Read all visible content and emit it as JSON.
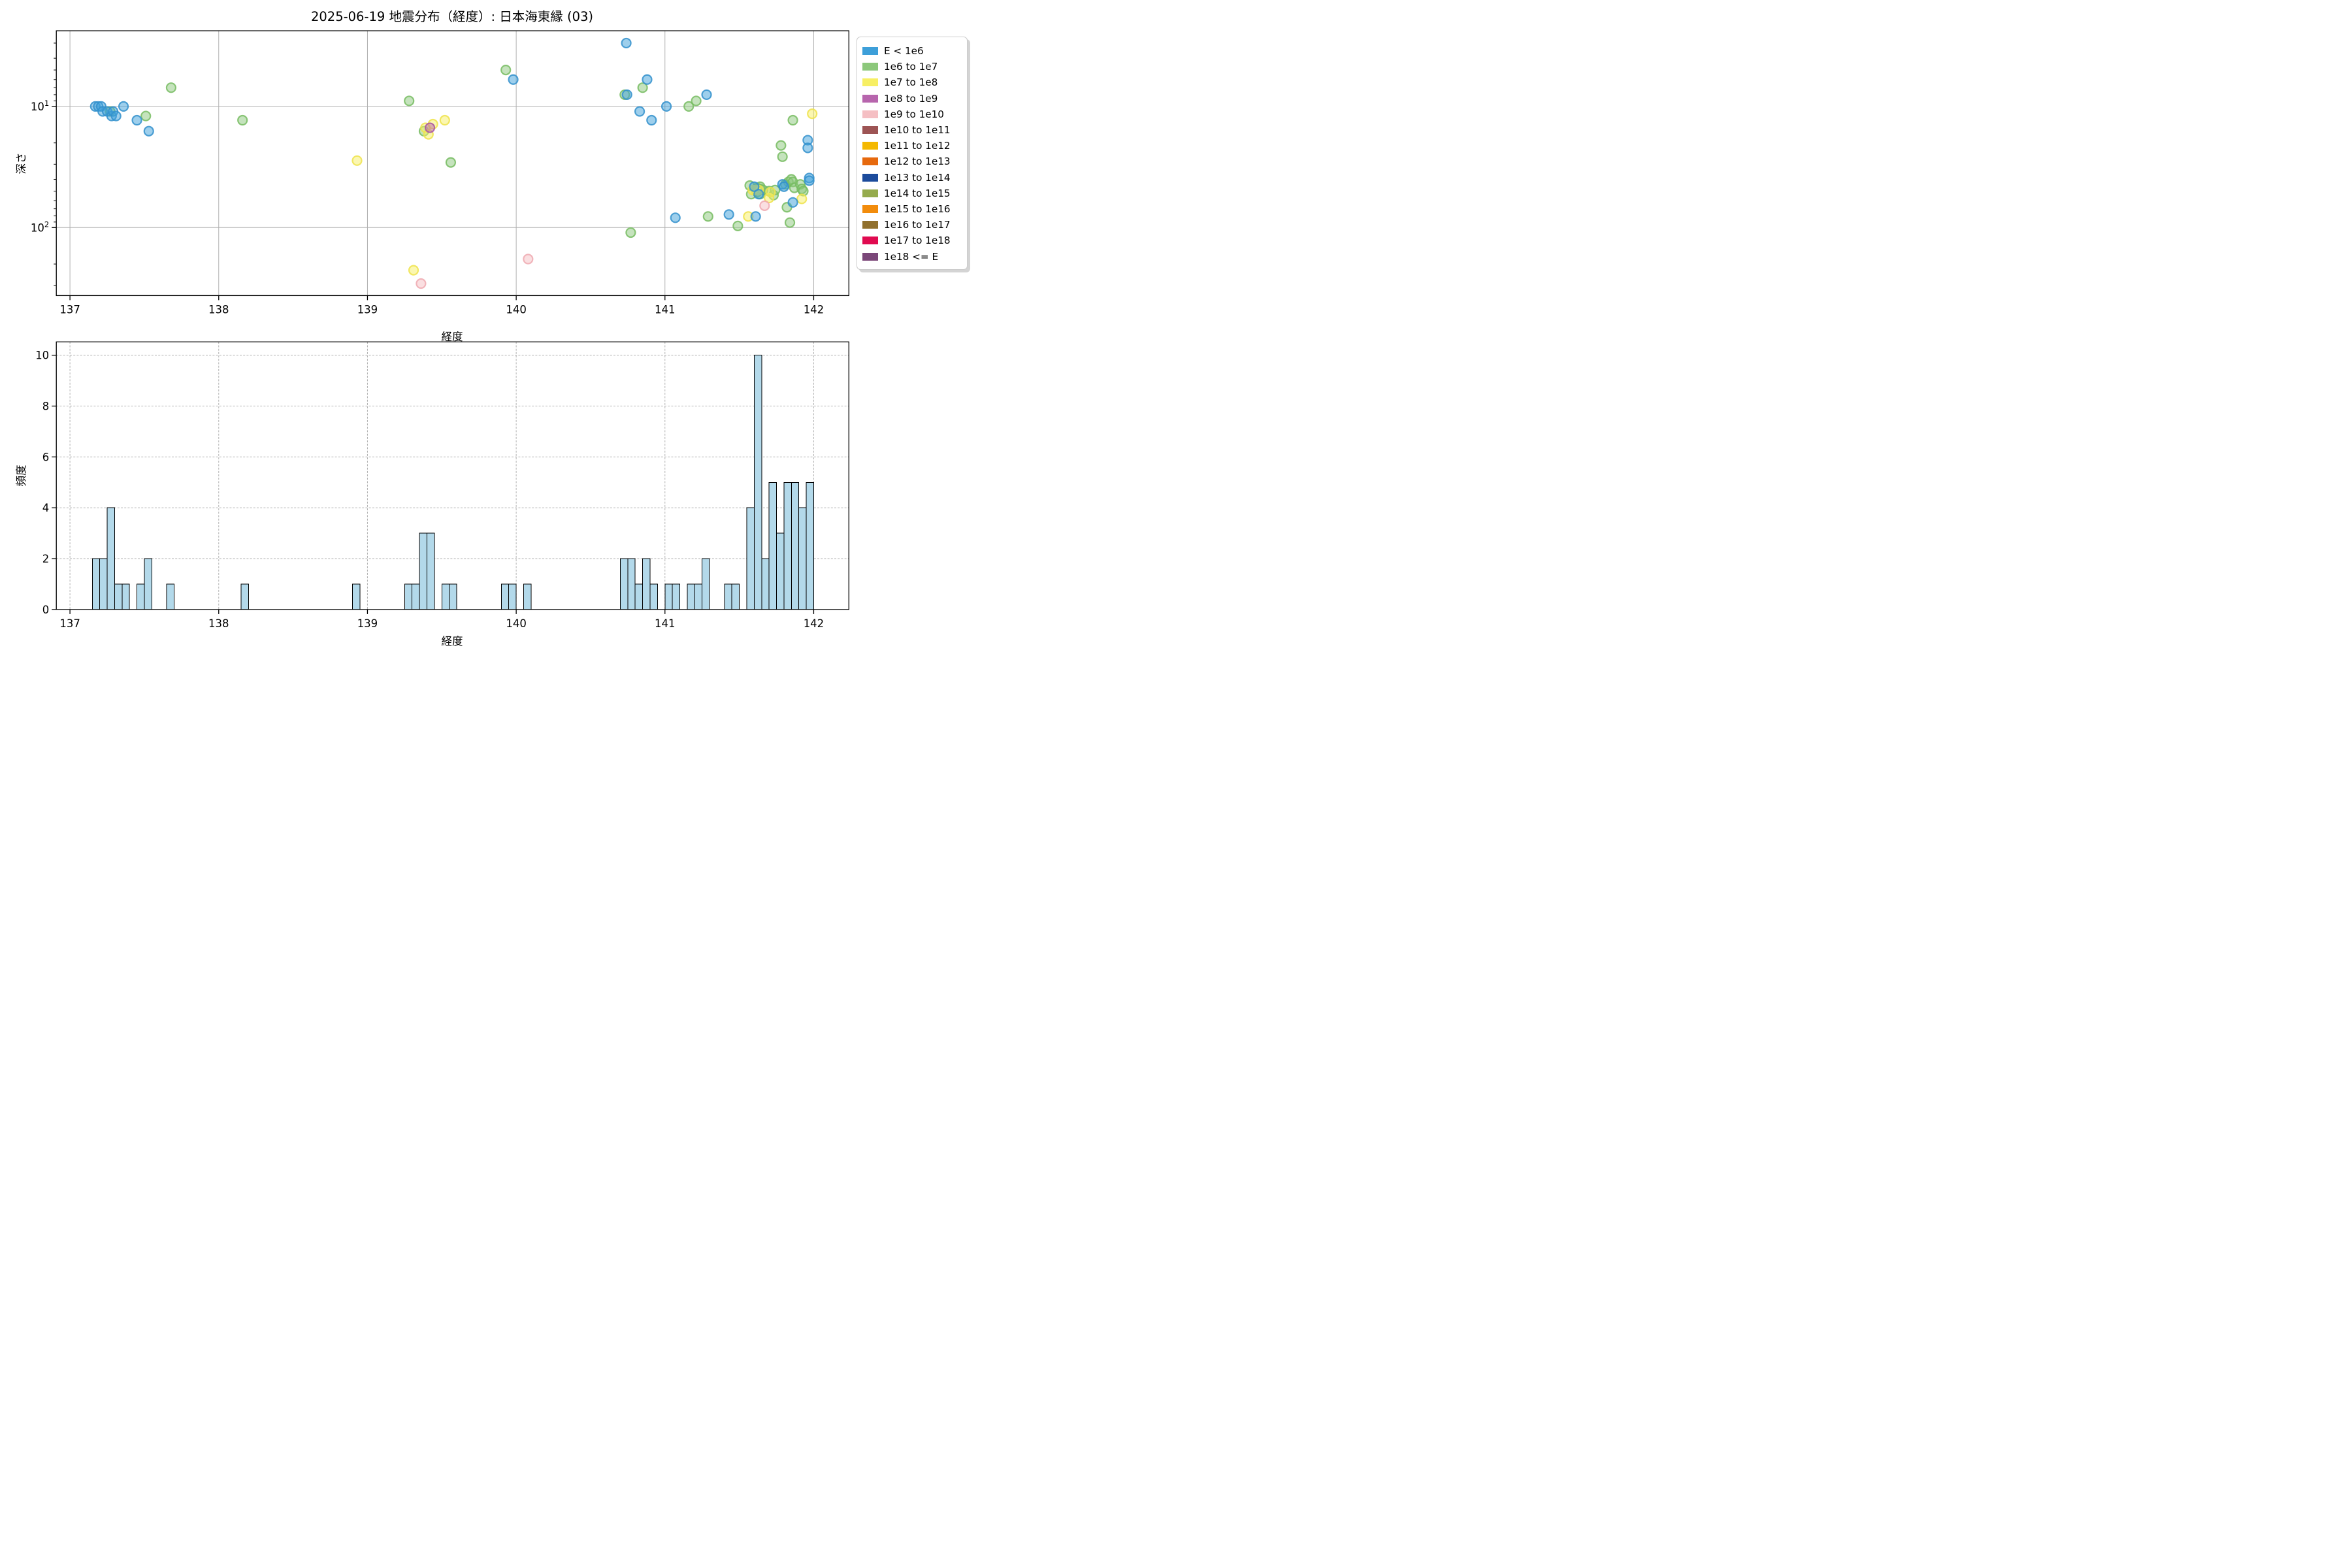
{
  "figure": {
    "title": "2025-06-19 地震分布（経度）: 日本海東縁 (03)",
    "background": "#ffffff",
    "grid_color": "#b0b0b0",
    "spine_color": "#000000"
  },
  "scatter_panel": {
    "xlabel": "経度",
    "ylabel": "深さ",
    "x_ticks": [
      137,
      138,
      139,
      140,
      141,
      142
    ],
    "y_major_ticks": [
      {
        "base": "10",
        "exp": "1",
        "depth": 10
      },
      {
        "base": "10",
        "exp": "2",
        "depth": 100
      }
    ],
    "y_minor_depths": [
      3,
      4,
      5,
      6,
      7,
      8,
      9,
      20,
      30,
      40,
      50,
      60,
      70,
      80,
      90,
      200,
      300
    ],
    "grid_style": "solid"
  },
  "hist_panel": {
    "xlabel": "経度",
    "ylabel": "頻度",
    "x_ticks": [
      137,
      138,
      139,
      140,
      141,
      142
    ],
    "y_ticks": [
      0,
      2,
      4,
      6,
      8,
      10
    ],
    "grid_style": "dashed"
  },
  "legend": {
    "items": [
      {
        "label": "E < 1e6",
        "color": "#3D9FD9"
      },
      {
        "label": "1e6 to 1e7",
        "color": "#8CC87B"
      },
      {
        "label": "1e7 to 1e8",
        "color": "#F7EF64"
      },
      {
        "label": "1e8 to 1e9",
        "color": "#B765AD"
      },
      {
        "label": "1e9 to 1e10",
        "color": "#F5BFC3"
      },
      {
        "label": "1e10 to 1e11",
        "color": "#9D5454"
      },
      {
        "label": "1e11 to 1e12",
        "color": "#F4B800"
      },
      {
        "label": "1e12 to 1e13",
        "color": "#E6690D"
      },
      {
        "label": "1e13 to 1e14",
        "color": "#1C4B9C"
      },
      {
        "label": "1e14 to 1e15",
        "color": "#95AB4D"
      },
      {
        "label": "1e15 to 1e16",
        "color": "#F28C0C"
      },
      {
        "label": "1e16 to 1e17",
        "color": "#91702D"
      },
      {
        "label": "1e17 to 1e18",
        "color": "#E00A50"
      },
      {
        "label": "1e18 <= E",
        "color": "#7B4779"
      }
    ]
  },
  "chart_data": [
    {
      "type": "scatter",
      "title": "2025-06-19 地震分布（経度）: 日本海東縁 (03)",
      "xlabel": "経度",
      "ylabel": "深さ",
      "xlim": [
        136.91,
        142.24
      ],
      "ylim_depth": [
        2.4,
        365
      ],
      "y_scale": "log-inverted",
      "series": [
        {
          "name": "E < 1e6",
          "color": "#3D9FD9",
          "edge": "#3391CC",
          "points": [
            [
              137.17,
              10
            ],
            [
              137.19,
              10
            ],
            [
              137.21,
              10
            ],
            [
              137.22,
              11
            ],
            [
              137.25,
              11
            ],
            [
              137.28,
              12
            ],
            [
              137.29,
              11
            ],
            [
              137.31,
              12
            ],
            [
              137.36,
              10
            ],
            [
              137.45,
              13
            ],
            [
              137.53,
              16
            ],
            [
              139.98,
              6
            ],
            [
              140.74,
              3
            ],
            [
              140.745,
              8
            ],
            [
              140.83,
              11
            ],
            [
              140.88,
              6
            ],
            [
              140.91,
              13
            ],
            [
              141.01,
              10
            ],
            [
              141.07,
              83
            ],
            [
              141.28,
              8
            ],
            [
              141.43,
              78
            ],
            [
              141.6,
              46
            ],
            [
              141.61,
              81
            ],
            [
              141.63,
              53
            ],
            [
              141.79,
              44
            ],
            [
              141.8,
              46
            ],
            [
              141.86,
              62
            ],
            [
              141.96,
              19
            ],
            [
              141.96,
              22
            ],
            [
              141.97,
              39
            ],
            [
              141.97,
              41
            ]
          ]
        },
        {
          "name": "1e6 to 1e7",
          "color": "#8CC87B",
          "edge": "#77BC62",
          "points": [
            [
              137.27,
              11
            ],
            [
              137.51,
              12
            ],
            [
              137.68,
              7
            ],
            [
              138.16,
              13
            ],
            [
              139.28,
              9
            ],
            [
              139.38,
              16
            ],
            [
              139.56,
              29
            ],
            [
              139.93,
              5
            ],
            [
              140.73,
              8
            ],
            [
              140.77,
              110
            ],
            [
              140.85,
              7
            ],
            [
              141.16,
              10
            ],
            [
              141.21,
              9
            ],
            [
              141.29,
              81
            ],
            [
              141.49,
              97
            ],
            [
              141.57,
              45
            ],
            [
              141.58,
              53
            ],
            [
              141.62,
              47
            ],
            [
              141.62,
              51
            ],
            [
              141.64,
              46
            ],
            [
              141.64,
              53
            ],
            [
              141.64,
              48
            ],
            [
              141.66,
              49
            ],
            [
              141.7,
              50
            ],
            [
              141.73,
              54
            ],
            [
              141.74,
              49
            ],
            [
              141.78,
              21
            ],
            [
              141.79,
              26
            ],
            [
              141.81,
              44
            ],
            [
              141.82,
              68
            ],
            [
              141.83,
              42
            ],
            [
              141.84,
              91
            ],
            [
              141.85,
              40
            ],
            [
              141.86,
              42
            ],
            [
              141.86,
              13
            ],
            [
              141.87,
              47
            ],
            [
              141.91,
              44
            ],
            [
              141.92,
              48
            ],
            [
              141.93,
              50
            ]
          ]
        },
        {
          "name": "1e7 to 1e8",
          "color": "#F7EF64",
          "edge": "#EFE34C",
          "points": [
            [
              138.93,
              28
            ],
            [
              139.31,
              225
            ],
            [
              139.39,
              15
            ],
            [
              139.41,
              17
            ],
            [
              139.44,
              14
            ],
            [
              139.52,
              13
            ],
            [
              141.56,
              81
            ],
            [
              141.59,
              49
            ],
            [
              141.61,
              49
            ],
            [
              141.63,
              49
            ],
            [
              141.7,
              57
            ],
            [
              141.71,
              51
            ],
            [
              141.92,
              58
            ],
            [
              141.99,
              11.5
            ]
          ]
        },
        {
          "name": "1e8 to 1e9",
          "color": "#B765AD",
          "edge": "#A855A2",
          "points": [
            [
              139.42,
              15
            ]
          ]
        },
        {
          "name": "1e9 to 1e10",
          "color": "#F5BFC3",
          "edge": "#EFA9B0",
          "points": [
            [
              139.36,
              290
            ],
            [
              140.08,
              182
            ],
            [
              141.67,
              66
            ]
          ]
        }
      ],
      "draw_order": [
        1,
        2,
        3,
        4,
        0
      ],
      "legend_position": "outside-right"
    },
    {
      "type": "bar",
      "xlabel": "経度",
      "ylabel": "頻度",
      "xlim": [
        136.91,
        142.24
      ],
      "ylim": [
        0,
        10.5
      ],
      "bar_color": "#B3D9EA",
      "bar_edge": "#000000",
      "bin_width": 0.05,
      "bins": [
        [
          137.15,
          2
        ],
        [
          137.2,
          2
        ],
        [
          137.25,
          4
        ],
        [
          137.3,
          1
        ],
        [
          137.35,
          1
        ],
        [
          137.45,
          1
        ],
        [
          137.5,
          2
        ],
        [
          137.65,
          1
        ],
        [
          138.15,
          1
        ],
        [
          138.9,
          1
        ],
        [
          139.25,
          1
        ],
        [
          139.3,
          1
        ],
        [
          139.35,
          3
        ],
        [
          139.4,
          3
        ],
        [
          139.5,
          1
        ],
        [
          139.55,
          1
        ],
        [
          139.9,
          1
        ],
        [
          139.95,
          1
        ],
        [
          140.05,
          1
        ],
        [
          140.7,
          2
        ],
        [
          140.75,
          2
        ],
        [
          140.8,
          1
        ],
        [
          140.85,
          2
        ],
        [
          140.9,
          1
        ],
        [
          141.0,
          1
        ],
        [
          141.05,
          1
        ],
        [
          141.15,
          1
        ],
        [
          141.2,
          1
        ],
        [
          141.25,
          2
        ],
        [
          141.4,
          1
        ],
        [
          141.45,
          1
        ],
        [
          141.55,
          4
        ],
        [
          141.6,
          10
        ],
        [
          141.65,
          2
        ],
        [
          141.7,
          5
        ],
        [
          141.75,
          3
        ],
        [
          141.8,
          5
        ],
        [
          141.85,
          5
        ],
        [
          141.9,
          4
        ],
        [
          141.95,
          5
        ]
      ]
    }
  ]
}
